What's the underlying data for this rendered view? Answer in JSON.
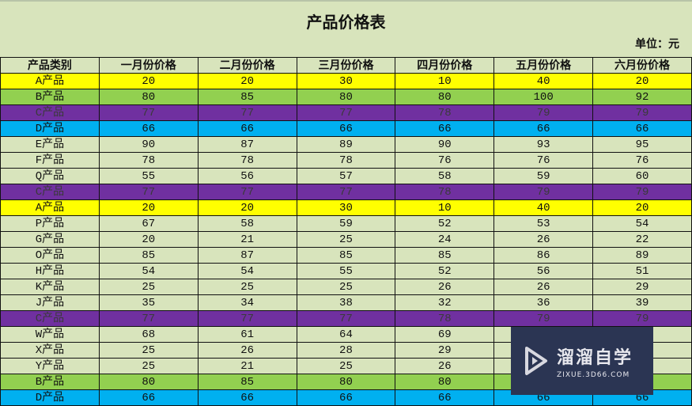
{
  "title": "产品价格表",
  "unit": "单位：元",
  "headers": [
    "产品类别",
    "一月份价格",
    "二月份价格",
    "三月份价格",
    "四月份价格",
    "五月份价格",
    "六月份价格"
  ],
  "colors": {
    "yellow": "#ffff00",
    "green": "#92d050",
    "purple": "#7030a0",
    "blue": "#00b0f0",
    "light": "#d8e4bc"
  },
  "rows": [
    {
      "color": "yellow",
      "cells": [
        "A产品",
        "20",
        "20",
        "30",
        "10",
        "40",
        "20"
      ]
    },
    {
      "color": "green",
      "cells": [
        "B产品",
        "80",
        "85",
        "80",
        "80",
        "100",
        "92"
      ]
    },
    {
      "color": "purple",
      "cells": [
        "C产品",
        "77",
        "77",
        "77",
        "78",
        "79",
        "79"
      ]
    },
    {
      "color": "blue",
      "cells": [
        "D产品",
        "66",
        "66",
        "66",
        "66",
        "66",
        "66"
      ]
    },
    {
      "color": "light",
      "cells": [
        "E产品",
        "90",
        "87",
        "89",
        "90",
        "93",
        "95"
      ]
    },
    {
      "color": "light",
      "cells": [
        "F产品",
        "78",
        "78",
        "78",
        "76",
        "76",
        "76"
      ]
    },
    {
      "color": "light",
      "cells": [
        "Q产品",
        "55",
        "56",
        "57",
        "58",
        "59",
        "60"
      ]
    },
    {
      "color": "purple",
      "cells": [
        "C产品",
        "77",
        "77",
        "77",
        "78",
        "79",
        "79"
      ]
    },
    {
      "color": "yellow",
      "cells": [
        "A产品",
        "20",
        "20",
        "30",
        "10",
        "40",
        "20"
      ]
    },
    {
      "color": "light",
      "cells": [
        "P产品",
        "67",
        "58",
        "59",
        "52",
        "53",
        "54"
      ]
    },
    {
      "color": "light",
      "cells": [
        "G产品",
        "20",
        "21",
        "25",
        "24",
        "26",
        "22"
      ]
    },
    {
      "color": "light",
      "cells": [
        "O产品",
        "85",
        "87",
        "85",
        "85",
        "86",
        "89"
      ]
    },
    {
      "color": "light",
      "cells": [
        "H产品",
        "54",
        "54",
        "55",
        "52",
        "56",
        "51"
      ]
    },
    {
      "color": "light",
      "cells": [
        "K产品",
        "25",
        "25",
        "25",
        "26",
        "26",
        "29"
      ]
    },
    {
      "color": "light",
      "cells": [
        "J产品",
        "35",
        "34",
        "38",
        "32",
        "36",
        "39"
      ]
    },
    {
      "color": "purple",
      "cells": [
        "C产品",
        "77",
        "77",
        "77",
        "78",
        "79",
        "79"
      ]
    },
    {
      "color": "light",
      "cells": [
        "W产品",
        "68",
        "61",
        "64",
        "69",
        "",
        ""
      ]
    },
    {
      "color": "light",
      "cells": [
        "X产品",
        "25",
        "26",
        "28",
        "29",
        "",
        ""
      ]
    },
    {
      "color": "light",
      "cells": [
        "Y产品",
        "25",
        "21",
        "25",
        "26",
        "",
        ""
      ]
    },
    {
      "color": "green",
      "cells": [
        "B产品",
        "80",
        "85",
        "80",
        "80",
        "",
        ""
      ]
    },
    {
      "color": "blue",
      "cells": [
        "D产品",
        "66",
        "66",
        "66",
        "66",
        "66",
        "66"
      ]
    }
  ],
  "watermark": {
    "name": "溜溜自学",
    "url": "ZIXUE.3D66.COM"
  }
}
